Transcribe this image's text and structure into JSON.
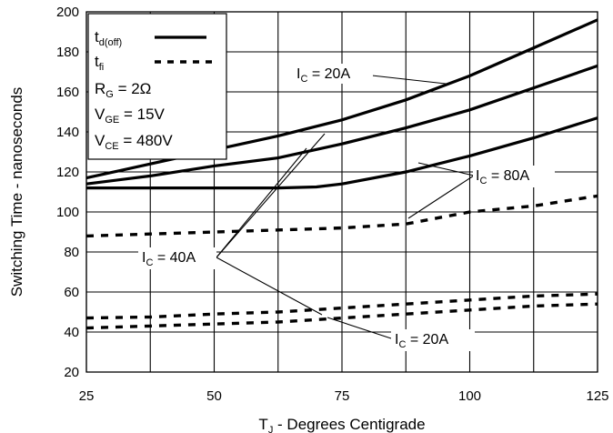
{
  "chart_data": {
    "type": "line",
    "xlabel": "T",
    "xlabel_sub": "J",
    "xlabel_rest": " - Degrees Centigrade",
    "ylabel": "Switching Time - nanoseconds",
    "xlim": [
      25,
      125
    ],
    "ylim": [
      20,
      200
    ],
    "x_ticks": [
      25,
      50,
      75,
      100,
      125
    ],
    "y_ticks": [
      20,
      40,
      60,
      80,
      100,
      120,
      140,
      160,
      180,
      200
    ],
    "x_grid": [
      25,
      37.5,
      50,
      62.5,
      75,
      87.5,
      100,
      112.5,
      125
    ],
    "grid": true,
    "legend_position": "top-left",
    "legend": {
      "td_main": "t",
      "td_sub": "d(off)",
      "tf_main": "t",
      "tf_sub": "fi",
      "rg_main": "R",
      "rg_sub": "G",
      "rg_rest": " = 2Ω",
      "vge_main": "V",
      "vge_sub": "GE",
      "vge_rest": " = 15V",
      "vce_main": "V",
      "vce_sub": "CE",
      "vce_rest": " = 480V"
    },
    "annotations": {
      "ic20_top_main": "I",
      "ic20_top_sub": "C",
      "ic20_top_rest": " = 20A",
      "ic80_main": "I",
      "ic80_sub": "C",
      "ic80_rest": " = 80A",
      "ic40_main": "I",
      "ic40_sub": "C",
      "ic40_rest": " = 40A",
      "ic20_bot_main": "I",
      "ic20_bot_sub": "C",
      "ic20_bot_rest": " = 20A"
    },
    "series": [
      {
        "style": "solid",
        "x": [
          25,
          37.5,
          50,
          62.5,
          75,
          87.5,
          100,
          112.5,
          125
        ],
        "y": [
          117,
          124,
          131,
          138,
          146,
          156,
          168,
          182,
          196
        ]
      },
      {
        "style": "solid",
        "x": [
          25,
          37.5,
          50,
          62.5,
          75,
          87.5,
          100,
          112.5,
          125
        ],
        "y": [
          114,
          118,
          123,
          127,
          134,
          142,
          151,
          162,
          173
        ]
      },
      {
        "style": "solid",
        "x": [
          25,
          37.5,
          50,
          62.5,
          70,
          75,
          87.5,
          100,
          112.5,
          125
        ],
        "y": [
          112,
          112,
          112,
          112,
          112.5,
          114,
          120,
          128,
          137,
          147
        ]
      },
      {
        "style": "dashed",
        "x": [
          25,
          37.5,
          50,
          62.5,
          75,
          87.5,
          100,
          112.5,
          125
        ],
        "y": [
          88,
          89,
          90,
          91,
          92,
          94,
          100,
          103,
          108
        ]
      },
      {
        "style": "dashed",
        "x": [
          25,
          37.5,
          50,
          62.5,
          75,
          87.5,
          100,
          112.5,
          125
        ],
        "y": [
          47,
          47.5,
          49,
          50,
          52,
          54,
          56,
          58,
          59
        ]
      },
      {
        "style": "dashed",
        "x": [
          25,
          37.5,
          50,
          62.5,
          75,
          87.5,
          100,
          112.5,
          125
        ],
        "y": [
          42,
          43,
          44,
          45,
          47,
          49,
          51,
          53,
          54
        ]
      }
    ]
  }
}
